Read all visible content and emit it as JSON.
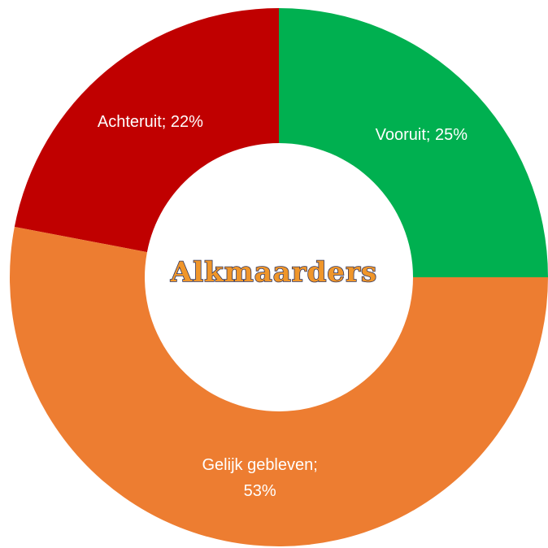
{
  "chart_data": {
    "type": "donut",
    "center_text": "Alkmaarders",
    "values": [
      25,
      53,
      22
    ],
    "value_labels": [
      "Vooruit; 25%",
      "Gelijk gebleven; 53%",
      "Achteruit; 22%"
    ],
    "colors": [
      "#00b050",
      "#ed7d31",
      "#c00000"
    ]
  }
}
